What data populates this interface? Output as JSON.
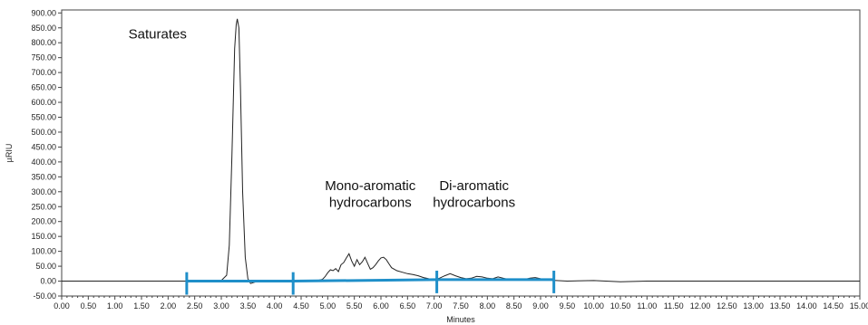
{
  "chart_data": {
    "type": "line",
    "xlabel": "Minutes",
    "ylabel": "µRIU",
    "xlim": [
      0.0,
      15.0
    ],
    "ylim": [
      -50.0,
      910.0
    ],
    "xticks": [
      0.0,
      0.5,
      1.0,
      1.5,
      2.0,
      2.5,
      3.0,
      3.5,
      4.0,
      4.5,
      5.0,
      5.5,
      6.0,
      6.5,
      7.0,
      7.5,
      8.0,
      8.5,
      9.0,
      9.5,
      10.0,
      10.5,
      11.0,
      11.5,
      12.0,
      12.5,
      13.0,
      13.5,
      14.0,
      14.5,
      15.0
    ],
    "xtick_labels": [
      "0.00",
      "0.50",
      "1.00",
      "1.50",
      "2.00",
      "2.50",
      "3.00",
      "3.50",
      "4.00",
      "4.50",
      "5.00",
      "5.50",
      "6.00",
      "6.50",
      "7.00",
      "7.50",
      "8.00",
      "8.50",
      "9.00",
      "9.50",
      "10.00",
      "10.50",
      "11.00",
      "11.50",
      "12.00",
      "12.50",
      "13.00",
      "13.50",
      "14.00",
      "14.50",
      "15.00"
    ],
    "yticks": [
      -50,
      0,
      50,
      100,
      150,
      200,
      250,
      300,
      350,
      400,
      450,
      500,
      550,
      600,
      650,
      700,
      750,
      800,
      850,
      900
    ],
    "ytick_labels": [
      "-50.00",
      "0.00",
      "50.00",
      "100.00",
      "150.00",
      "200.00",
      "250.00",
      "300.00",
      "350.00",
      "400.00",
      "450.00",
      "500.00",
      "550.00",
      "600.00",
      "650.00",
      "700.00",
      "750.00",
      "800.00",
      "850.00",
      "900.00"
    ],
    "grid": false,
    "series": [
      {
        "color": "#222222",
        "x": [
          0.0,
          1.0,
          2.0,
          2.5,
          3.0,
          3.1,
          3.15,
          3.2,
          3.25,
          3.28,
          3.3,
          3.33,
          3.36,
          3.4,
          3.45,
          3.5,
          3.55,
          3.6,
          3.7,
          4.0,
          4.5,
          4.8,
          4.9,
          4.95,
          5.0,
          5.05,
          5.1,
          5.15,
          5.2,
          5.25,
          5.3,
          5.35,
          5.4,
          5.45,
          5.5,
          5.55,
          5.6,
          5.65,
          5.7,
          5.75,
          5.8,
          5.85,
          5.9,
          5.95,
          6.0,
          6.05,
          6.1,
          6.15,
          6.2,
          6.3,
          6.4,
          6.5,
          6.6,
          6.7,
          6.8,
          6.9,
          7.0,
          7.1,
          7.2,
          7.3,
          7.4,
          7.5,
          7.6,
          7.7,
          7.8,
          7.9,
          8.0,
          8.1,
          8.2,
          8.3,
          8.4,
          8.5,
          8.6,
          8.7,
          8.8,
          8.9,
          9.0,
          9.1,
          9.2,
          9.3,
          9.5,
          10.0,
          10.5,
          11.0,
          12.0,
          13.0,
          14.0,
          15.0
        ],
        "y": [
          0,
          0,
          0,
          0,
          2,
          20,
          120,
          420,
          780,
          860,
          880,
          850,
          650,
          300,
          80,
          8,
          -8,
          -5,
          0,
          0,
          0,
          2,
          6,
          15,
          28,
          38,
          35,
          42,
          32,
          55,
          62,
          78,
          92,
          68,
          50,
          72,
          55,
          65,
          80,
          60,
          40,
          45,
          55,
          68,
          78,
          80,
          72,
          58,
          45,
          35,
          30,
          25,
          22,
          18,
          12,
          8,
          5,
          10,
          18,
          25,
          18,
          12,
          8,
          10,
          16,
          14,
          10,
          8,
          14,
          10,
          6,
          5,
          4,
          6,
          10,
          12,
          8,
          5,
          3,
          2,
          0,
          2,
          -2,
          0,
          0,
          0,
          0,
          0
        ]
      }
    ],
    "annotations": [
      {
        "text": "Saturates",
        "x": 2.35,
        "y": 815
      },
      {
        "text": "Mono-aromatic",
        "x": 5.8,
        "y": 305
      },
      {
        "text": "hydrocarbons",
        "x": 5.8,
        "y": 250
      },
      {
        "text": "Di-aromatic",
        "x": 7.75,
        "y": 305
      },
      {
        "text": "hydrocarbons",
        "x": 7.75,
        "y": 250
      }
    ],
    "integration_markers": {
      "color": "#1f8fc9",
      "x": [
        2.35,
        4.35,
        7.05,
        9.25
      ],
      "baseline_y": [
        0,
        0,
        5,
        5
      ],
      "height": 30
    }
  }
}
